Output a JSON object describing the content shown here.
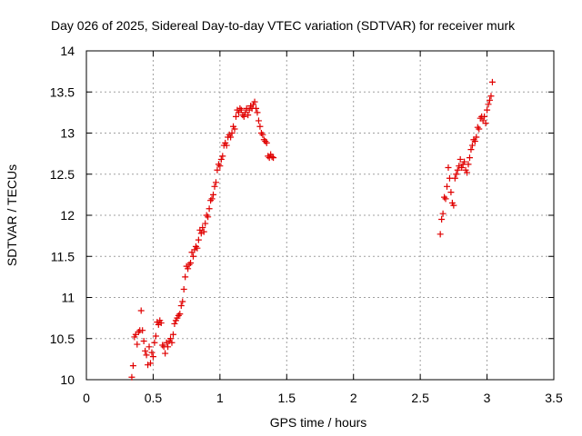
{
  "chart_data": {
    "type": "scatter",
    "title": "Day 026 of 2025, Sidereal Day-to-day VTEC variation (SDTVAR) for receiver murk",
    "xlabel": "GPS time / hours",
    "ylabel": "SDTVAR / TECUs",
    "xlim": [
      0,
      3.5
    ],
    "ylim": [
      10,
      14
    ],
    "xticks": [
      0,
      0.5,
      1,
      1.5,
      2,
      2.5,
      3,
      3.5
    ],
    "xtick_labels": [
      "0",
      "0.5",
      "1",
      "1.5",
      "2",
      "2.5",
      "3",
      "3.5"
    ],
    "yticks": [
      10,
      10.5,
      11,
      11.5,
      12,
      12.5,
      13,
      13.5,
      14
    ],
    "ytick_labels": [
      "10",
      "10.5",
      "11",
      "11.5",
      "12",
      "12.5",
      "13",
      "13.5",
      "14"
    ],
    "grid": true,
    "marker": "plus",
    "marker_color": "#e00000",
    "series": [
      {
        "name": "SDTVAR",
        "points": [
          [
            0.34,
            10.03
          ],
          [
            0.35,
            10.17
          ],
          [
            0.36,
            10.52
          ],
          [
            0.37,
            10.55
          ],
          [
            0.38,
            10.43
          ],
          [
            0.39,
            10.58
          ],
          [
            0.4,
            10.6
          ],
          [
            0.41,
            10.84
          ],
          [
            0.42,
            10.6
          ],
          [
            0.43,
            10.47
          ],
          [
            0.44,
            10.35
          ],
          [
            0.45,
            10.3
          ],
          [
            0.46,
            10.18
          ],
          [
            0.47,
            10.4
          ],
          [
            0.48,
            10.2
          ],
          [
            0.49,
            10.33
          ],
          [
            0.5,
            10.28
          ],
          [
            0.51,
            10.45
          ],
          [
            0.52,
            10.53
          ],
          [
            0.53,
            10.7
          ],
          [
            0.54,
            10.67
          ],
          [
            0.55,
            10.72
          ],
          [
            0.56,
            10.69
          ],
          [
            0.57,
            10.42
          ],
          [
            0.58,
            10.4
          ],
          [
            0.59,
            10.32
          ],
          [
            0.6,
            10.45
          ],
          [
            0.61,
            10.4
          ],
          [
            0.62,
            10.47
          ],
          [
            0.63,
            10.5
          ],
          [
            0.64,
            10.45
          ],
          [
            0.65,
            10.55
          ],
          [
            0.66,
            10.68
          ],
          [
            0.67,
            10.72
          ],
          [
            0.68,
            10.75
          ],
          [
            0.69,
            10.78
          ],
          [
            0.7,
            10.8
          ],
          [
            0.71,
            10.9
          ],
          [
            0.72,
            10.95
          ],
          [
            0.73,
            11.1
          ],
          [
            0.74,
            11.25
          ],
          [
            0.75,
            11.38
          ],
          [
            0.76,
            11.35
          ],
          [
            0.77,
            11.4
          ],
          [
            0.78,
            11.42
          ],
          [
            0.79,
            11.55
          ],
          [
            0.8,
            11.5
          ],
          [
            0.81,
            11.58
          ],
          [
            0.82,
            11.62
          ],
          [
            0.83,
            11.6
          ],
          [
            0.84,
            11.7
          ],
          [
            0.85,
            11.82
          ],
          [
            0.86,
            11.78
          ],
          [
            0.87,
            11.85
          ],
          [
            0.88,
            11.8
          ],
          [
            0.89,
            11.9
          ],
          [
            0.9,
            12.0
          ],
          [
            0.91,
            11.98
          ],
          [
            0.92,
            12.08
          ],
          [
            0.93,
            12.18
          ],
          [
            0.94,
            12.2
          ],
          [
            0.95,
            12.25
          ],
          [
            0.96,
            12.35
          ],
          [
            0.97,
            12.4
          ],
          [
            0.98,
            12.55
          ],
          [
            0.99,
            12.62
          ],
          [
            1.0,
            12.6
          ],
          [
            1.01,
            12.68
          ],
          [
            1.02,
            12.72
          ],
          [
            1.03,
            12.85
          ],
          [
            1.04,
            12.88
          ],
          [
            1.05,
            12.85
          ],
          [
            1.06,
            12.95
          ],
          [
            1.07,
            12.98
          ],
          [
            1.08,
            12.95
          ],
          [
            1.09,
            13.0
          ],
          [
            1.1,
            13.08
          ],
          [
            1.11,
            13.05
          ],
          [
            1.12,
            13.2
          ],
          [
            1.13,
            13.28
          ],
          [
            1.14,
            13.25
          ],
          [
            1.15,
            13.3
          ],
          [
            1.16,
            13.28
          ],
          [
            1.17,
            13.22
          ],
          [
            1.18,
            13.2
          ],
          [
            1.19,
            13.25
          ],
          [
            1.2,
            13.3
          ],
          [
            1.21,
            13.22
          ],
          [
            1.22,
            13.28
          ],
          [
            1.23,
            13.33
          ],
          [
            1.24,
            13.3
          ],
          [
            1.25,
            13.35
          ],
          [
            1.26,
            13.38
          ],
          [
            1.27,
            13.3
          ],
          [
            1.28,
            13.25
          ],
          [
            1.29,
            13.15
          ],
          [
            1.3,
            13.08
          ],
          [
            1.31,
            13.0
          ],
          [
            1.32,
            12.98
          ],
          [
            1.33,
            12.92
          ],
          [
            1.34,
            12.9
          ],
          [
            1.35,
            12.88
          ],
          [
            1.36,
            12.72
          ],
          [
            1.37,
            12.7
          ],
          [
            1.38,
            12.74
          ],
          [
            1.39,
            12.71
          ],
          [
            1.4,
            12.7
          ],
          [
            2.65,
            11.77
          ],
          [
            2.66,
            11.95
          ],
          [
            2.67,
            12.02
          ],
          [
            2.68,
            12.22
          ],
          [
            2.69,
            12.2
          ],
          [
            2.7,
            12.35
          ],
          [
            2.71,
            12.58
          ],
          [
            2.72,
            12.45
          ],
          [
            2.73,
            12.28
          ],
          [
            2.74,
            12.15
          ],
          [
            2.75,
            12.12
          ],
          [
            2.76,
            12.45
          ],
          [
            2.77,
            12.5
          ],
          [
            2.78,
            12.55
          ],
          [
            2.79,
            12.6
          ],
          [
            2.8,
            12.68
          ],
          [
            2.81,
            12.58
          ],
          [
            2.82,
            12.62
          ],
          [
            2.83,
            12.65
          ],
          [
            2.84,
            12.55
          ],
          [
            2.85,
            12.52
          ],
          [
            2.86,
            12.62
          ],
          [
            2.87,
            12.7
          ],
          [
            2.88,
            12.8
          ],
          [
            2.89,
            12.85
          ],
          [
            2.9,
            12.92
          ],
          [
            2.91,
            12.9
          ],
          [
            2.92,
            12.95
          ],
          [
            2.93,
            13.07
          ],
          [
            2.94,
            13.05
          ],
          [
            2.95,
            13.18
          ],
          [
            2.96,
            13.2
          ],
          [
            2.97,
            13.15
          ],
          [
            2.98,
            13.2
          ],
          [
            2.99,
            13.12
          ],
          [
            3.0,
            13.28
          ],
          [
            3.01,
            13.35
          ],
          [
            3.02,
            13.4
          ],
          [
            3.03,
            13.45
          ],
          [
            3.04,
            13.62
          ]
        ]
      }
    ]
  }
}
